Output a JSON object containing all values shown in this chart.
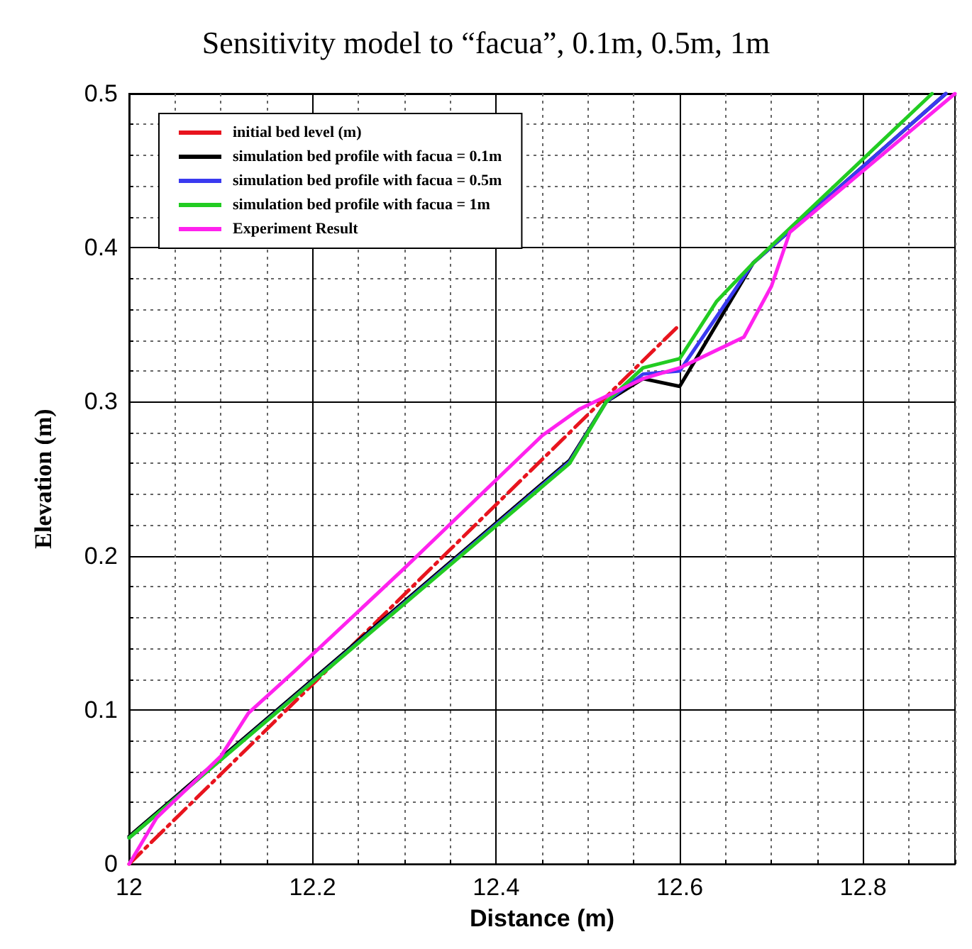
{
  "chart_data": {
    "type": "line",
    "title": "Sensitivity model to “facua”, 0.1m, 0.5m, 1m",
    "xlabel": "Distance (m)",
    "ylabel": "Elevation (m)",
    "xlim": [
      12,
      12.9
    ],
    "xticks": [
      12,
      12.2,
      12.4,
      12.6,
      12.8
    ],
    "ylim": [
      0,
      0.5
    ],
    "yticks": [
      0,
      0.1,
      0.2,
      0.3,
      0.4,
      0.5
    ],
    "grid": true,
    "legend": "top left",
    "marker": "none",
    "series": [
      {
        "name": "initial bed level (m)",
        "color": "#e8141e",
        "line_style": "dashed",
        "x": [
          12,
          12.6
        ],
        "values": [
          0,
          0.35
        ]
      },
      {
        "name": "simulation bed profile with facua = 0.1m",
        "color": "#000000",
        "x": [
          12,
          12.48,
          12.52,
          12.56,
          12.6,
          12.68,
          12.89
        ],
        "values": [
          0.018,
          0.262,
          0.3,
          0.315,
          0.31,
          0.39,
          0.5
        ]
      },
      {
        "name": "simulation bed profile with facua = 0.5m",
        "color": "#3a3af0",
        "x": [
          12,
          12.48,
          12.52,
          12.56,
          12.6,
          12.64,
          12.68,
          12.89
        ],
        "values": [
          0.017,
          0.261,
          0.3,
          0.318,
          0.32,
          0.355,
          0.39,
          0.5
        ]
      },
      {
        "name": "simulation bed profile with facua = 1m",
        "color": "#22cc22",
        "x": [
          12,
          12.48,
          12.52,
          12.56,
          12.6,
          12.64,
          12.68,
          12.875
        ],
        "values": [
          0.017,
          0.26,
          0.3,
          0.322,
          0.328,
          0.365,
          0.39,
          0.5
        ]
      },
      {
        "name": "Experiment Result",
        "color": "#ff22ee",
        "x": [
          12,
          12.01,
          12.03,
          12.1,
          12.13,
          12.18,
          12.3,
          12.45,
          12.49,
          12.56,
          12.6,
          12.67,
          12.7,
          12.72,
          12.9
        ],
        "values": [
          0,
          0.01,
          0.03,
          0.07,
          0.098,
          0.125,
          0.192,
          0.278,
          0.295,
          0.315,
          0.322,
          0.342,
          0.375,
          0.41,
          0.5
        ]
      }
    ]
  }
}
